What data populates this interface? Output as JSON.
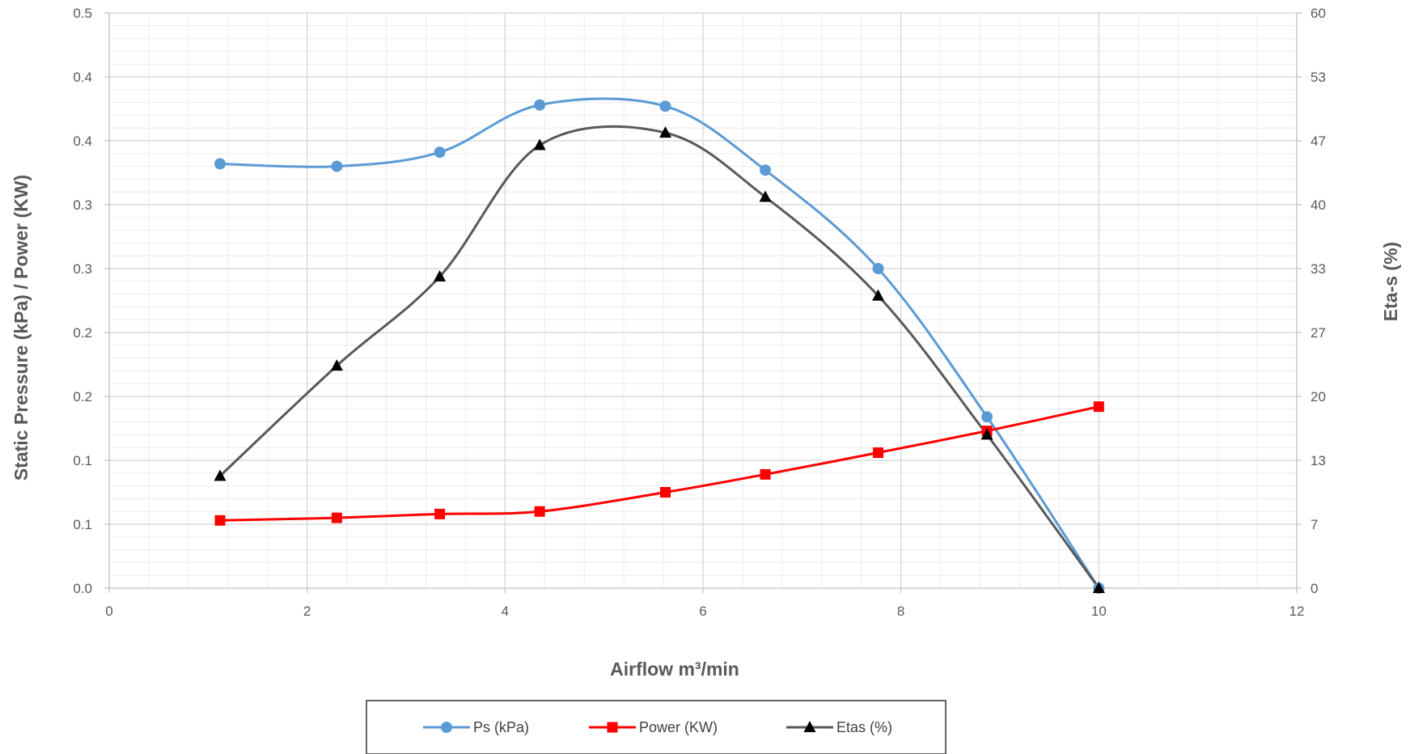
{
  "chart_data": {
    "type": "line",
    "xlabel": "Airflow m³/min",
    "ylabel": "Static Pressure (kPa) / Power (KW)",
    "y2label": "Eta-s (%)",
    "xlim": [
      0,
      12
    ],
    "ylim": [
      0,
      0.45
    ],
    "y2lim": [
      0,
      60
    ],
    "x_ticks": [
      "0",
      "2",
      "4",
      "6",
      "8",
      "10",
      "12"
    ],
    "y_ticks": [
      "0.0",
      "0.1",
      "0.1",
      "0.2",
      "0.2",
      "0.3",
      "0.3",
      "0.4",
      "0.4",
      "0.5"
    ],
    "y2_ticks": [
      "0",
      "7",
      "13",
      "20",
      "27",
      "33",
      "40",
      "47",
      "53",
      "60"
    ],
    "grid": true,
    "legend_position": "bottom",
    "series": [
      {
        "name": "Ps (kPa)",
        "axis": "left",
        "color": "#5b9bd5",
        "marker": "circle",
        "x": [
          1.12,
          2.3,
          3.34,
          4.35,
          5.62,
          6.63,
          7.77,
          8.87,
          10.0
        ],
        "y": [
          0.332,
          0.33,
          0.341,
          0.378,
          0.377,
          0.327,
          0.25,
          0.134,
          0.0
        ]
      },
      {
        "name": "Power (KW)",
        "axis": "left",
        "color": "#ff0000",
        "marker": "square",
        "x": [
          1.12,
          2.3,
          3.34,
          4.35,
          5.62,
          6.63,
          7.77,
          8.87,
          10.0
        ],
        "y": [
          0.053,
          0.055,
          0.058,
          0.06,
          0.075,
          0.089,
          0.106,
          0.123,
          0.142
        ]
      },
      {
        "name": "Etas (%)",
        "axis": "right",
        "color": "#595959",
        "marker": "triangle",
        "x": [
          1.12,
          2.3,
          3.34,
          4.35,
          5.62,
          6.63,
          7.77,
          8.87,
          10.0
        ],
        "y": [
          11.7,
          23.2,
          32.5,
          46.2,
          47.5,
          40.8,
          30.5,
          16.0,
          0.0
        ]
      }
    ]
  }
}
